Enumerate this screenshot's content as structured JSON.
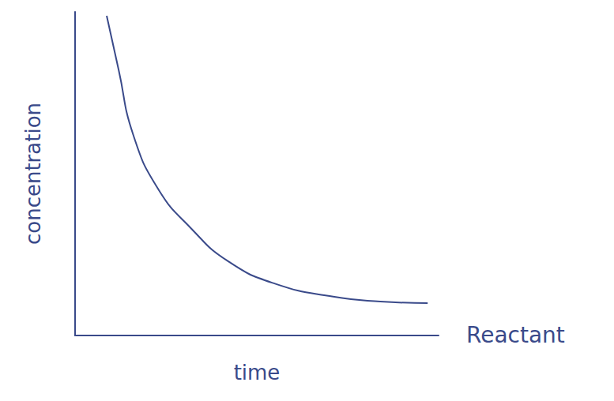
{
  "chart_data": {
    "type": "line",
    "x_label": "time",
    "y_label": "concentration",
    "annotation": "Reactant",
    "x": [
      0.87,
      1.2,
      1.6,
      2.3,
      3.2,
      4.2,
      5.5,
      7.1,
      8.4,
      9.7
    ],
    "values": [
      9.88,
      8.2,
      6.2,
      4.5,
      3.3,
      2.3,
      1.6,
      1.2,
      1.05,
      1.0
    ],
    "xlim": [
      0,
      10
    ],
    "ylim": [
      0,
      10
    ],
    "color": "#3a4a8a",
    "marker": "none",
    "line_style": "solid",
    "grid": false,
    "tick_labels": false
  }
}
